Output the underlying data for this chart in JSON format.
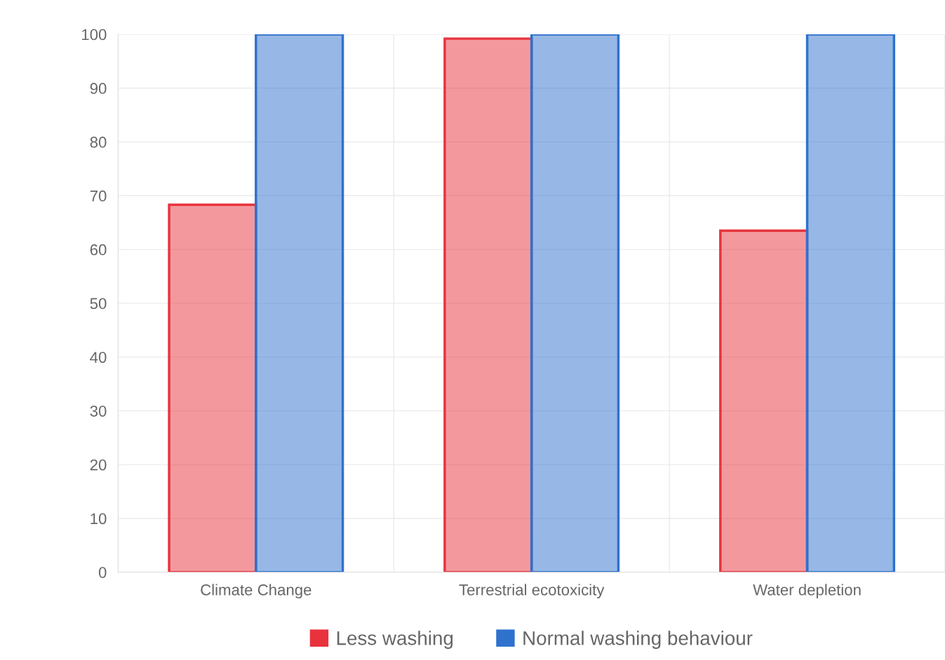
{
  "chart_data": {
    "type": "bar",
    "categories": [
      "Climate Change",
      "Terrestrial ecotoxicity",
      "Water depletion"
    ],
    "series": [
      {
        "name": "Less washing",
        "color": "#e8333d",
        "values": [
          68.3,
          99.2,
          63.5
        ]
      },
      {
        "name": "Normal washing behaviour",
        "color": "#2f72cd",
        "values": [
          100,
          100,
          100
        ]
      }
    ],
    "ylim": [
      0,
      100
    ],
    "yticks": [
      0,
      10,
      20,
      30,
      40,
      50,
      60,
      70,
      80,
      90,
      100
    ],
    "grid": true,
    "legend": "bottom"
  }
}
